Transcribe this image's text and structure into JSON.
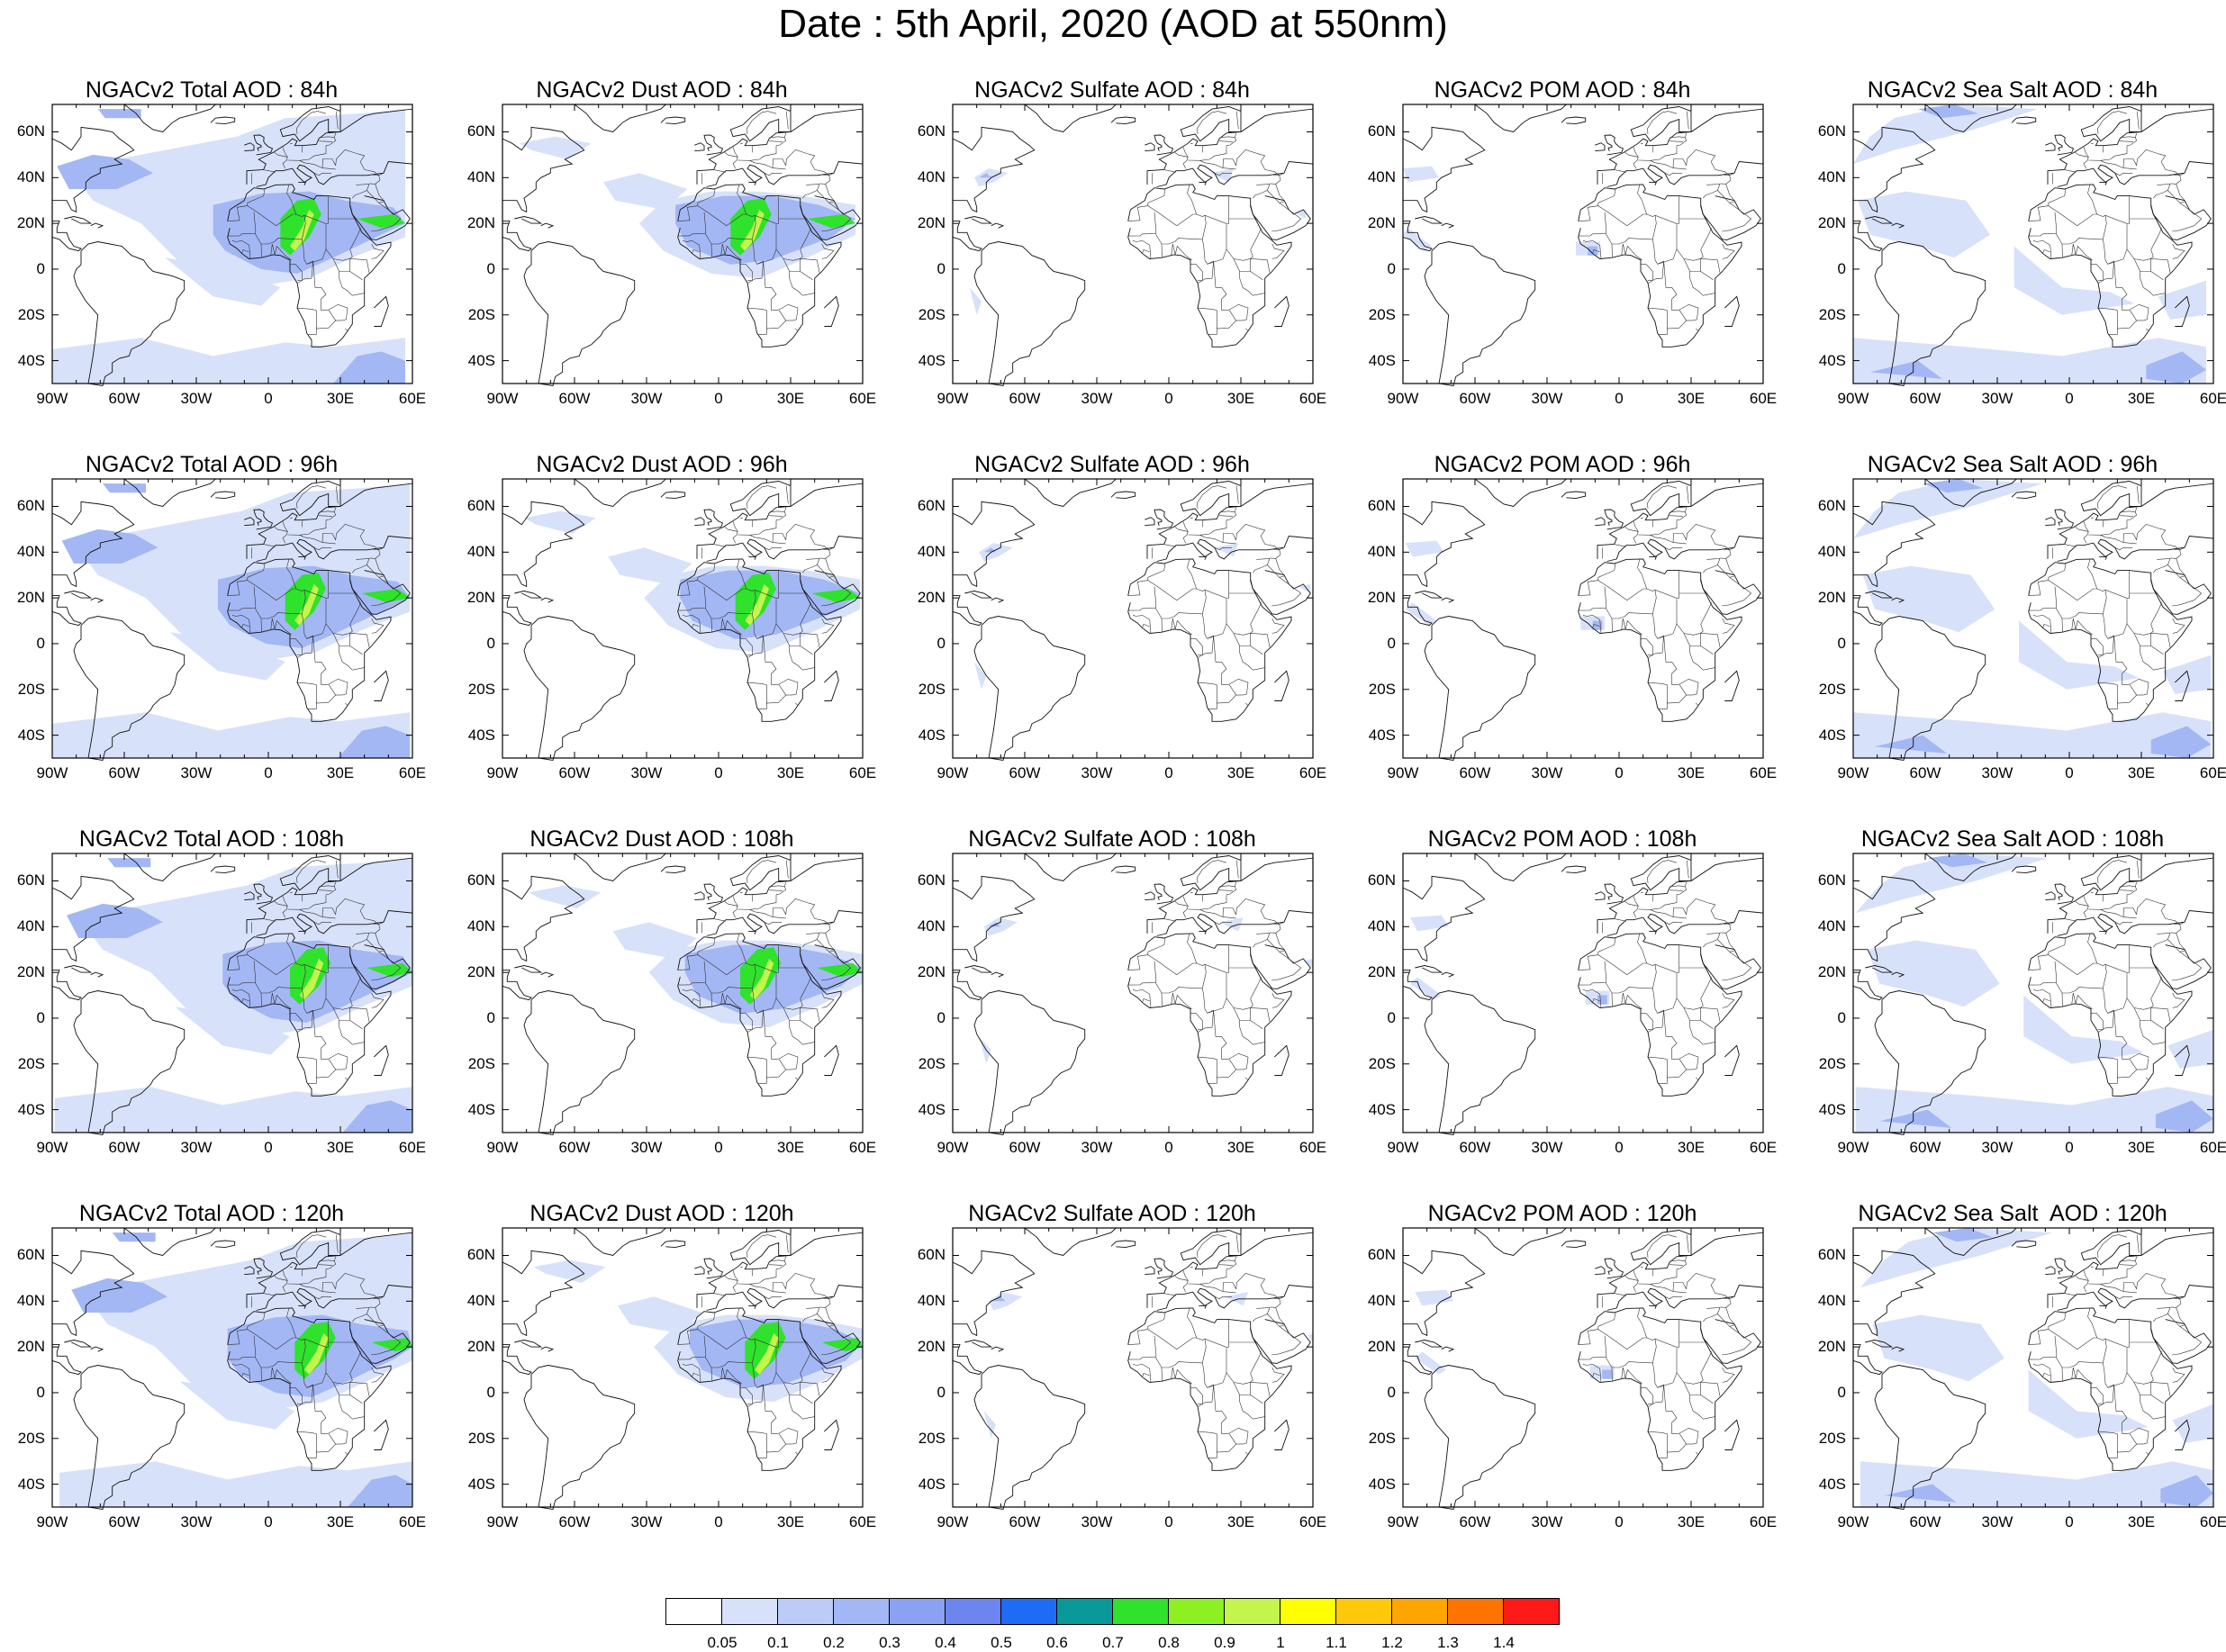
{
  "title": "Date : 5th April, 2020 (AOD at 550nm)",
  "lat_ticks": [
    "60N",
    "40N",
    "20N",
    "0",
    "20S",
    "40S"
  ],
  "lon_ticks": [
    "90W",
    "60W",
    "30W",
    "0",
    "30E",
    "60E"
  ],
  "rows": [
    {
      "forecast_hour": "84h",
      "titles": [
        "NGACv2 Total AOD : 84h",
        "NGACv2 Dust AOD : 84h",
        "NGACv2 Sulfate AOD : 84h",
        "NGACv2 POM AOD : 84h",
        "NGACv2 Sea Salt AOD : 84h"
      ]
    },
    {
      "forecast_hour": "96h",
      "titles": [
        "NGACv2 Total AOD : 96h",
        "NGACv2 Dust AOD : 96h",
        "NGACv2 Sulfate AOD : 96h",
        "NGACv2 POM AOD : 96h",
        "NGACv2 Sea Salt AOD : 96h"
      ]
    },
    {
      "forecast_hour": "108h",
      "titles": [
        "NGACv2 Total AOD : 108h",
        "NGACv2 Dust AOD : 108h",
        "NGACv2 Sulfate AOD : 108h",
        "NGACv2 POM AOD : 108h",
        "NGACv2 Sea Salt AOD : 108h"
      ]
    },
    {
      "forecast_hour": "120h",
      "titles": [
        "NGACv2 Total AOD : 120h",
        "NGACv2 Dust AOD : 120h",
        "NGACv2 Sulfate AOD : 120h",
        "NGACv2 POM AOD : 120h",
        "NGACv2 Sea Salt  AOD : 120h"
      ]
    }
  ],
  "colorbar": {
    "labels": [
      "0.05",
      "0.1",
      "0.2",
      "0.3",
      "0.4",
      "0.5",
      "0.6",
      "0.7",
      "0.8",
      "0.9",
      "1",
      "1.1",
      "1.2",
      "1.3",
      "1.4"
    ],
    "colors": [
      "#ffffff",
      "#d7e1fa",
      "#bccbf7",
      "#a3b7f4",
      "#8aa2f1",
      "#6d85ee",
      "#1e6cf5",
      "#09999a",
      "#2fe22b",
      "#8cf023",
      "#c4f54c",
      "#ffff00",
      "#ffc80a",
      "#ffa500",
      "#ff7300",
      "#ff1a1a"
    ]
  }
}
